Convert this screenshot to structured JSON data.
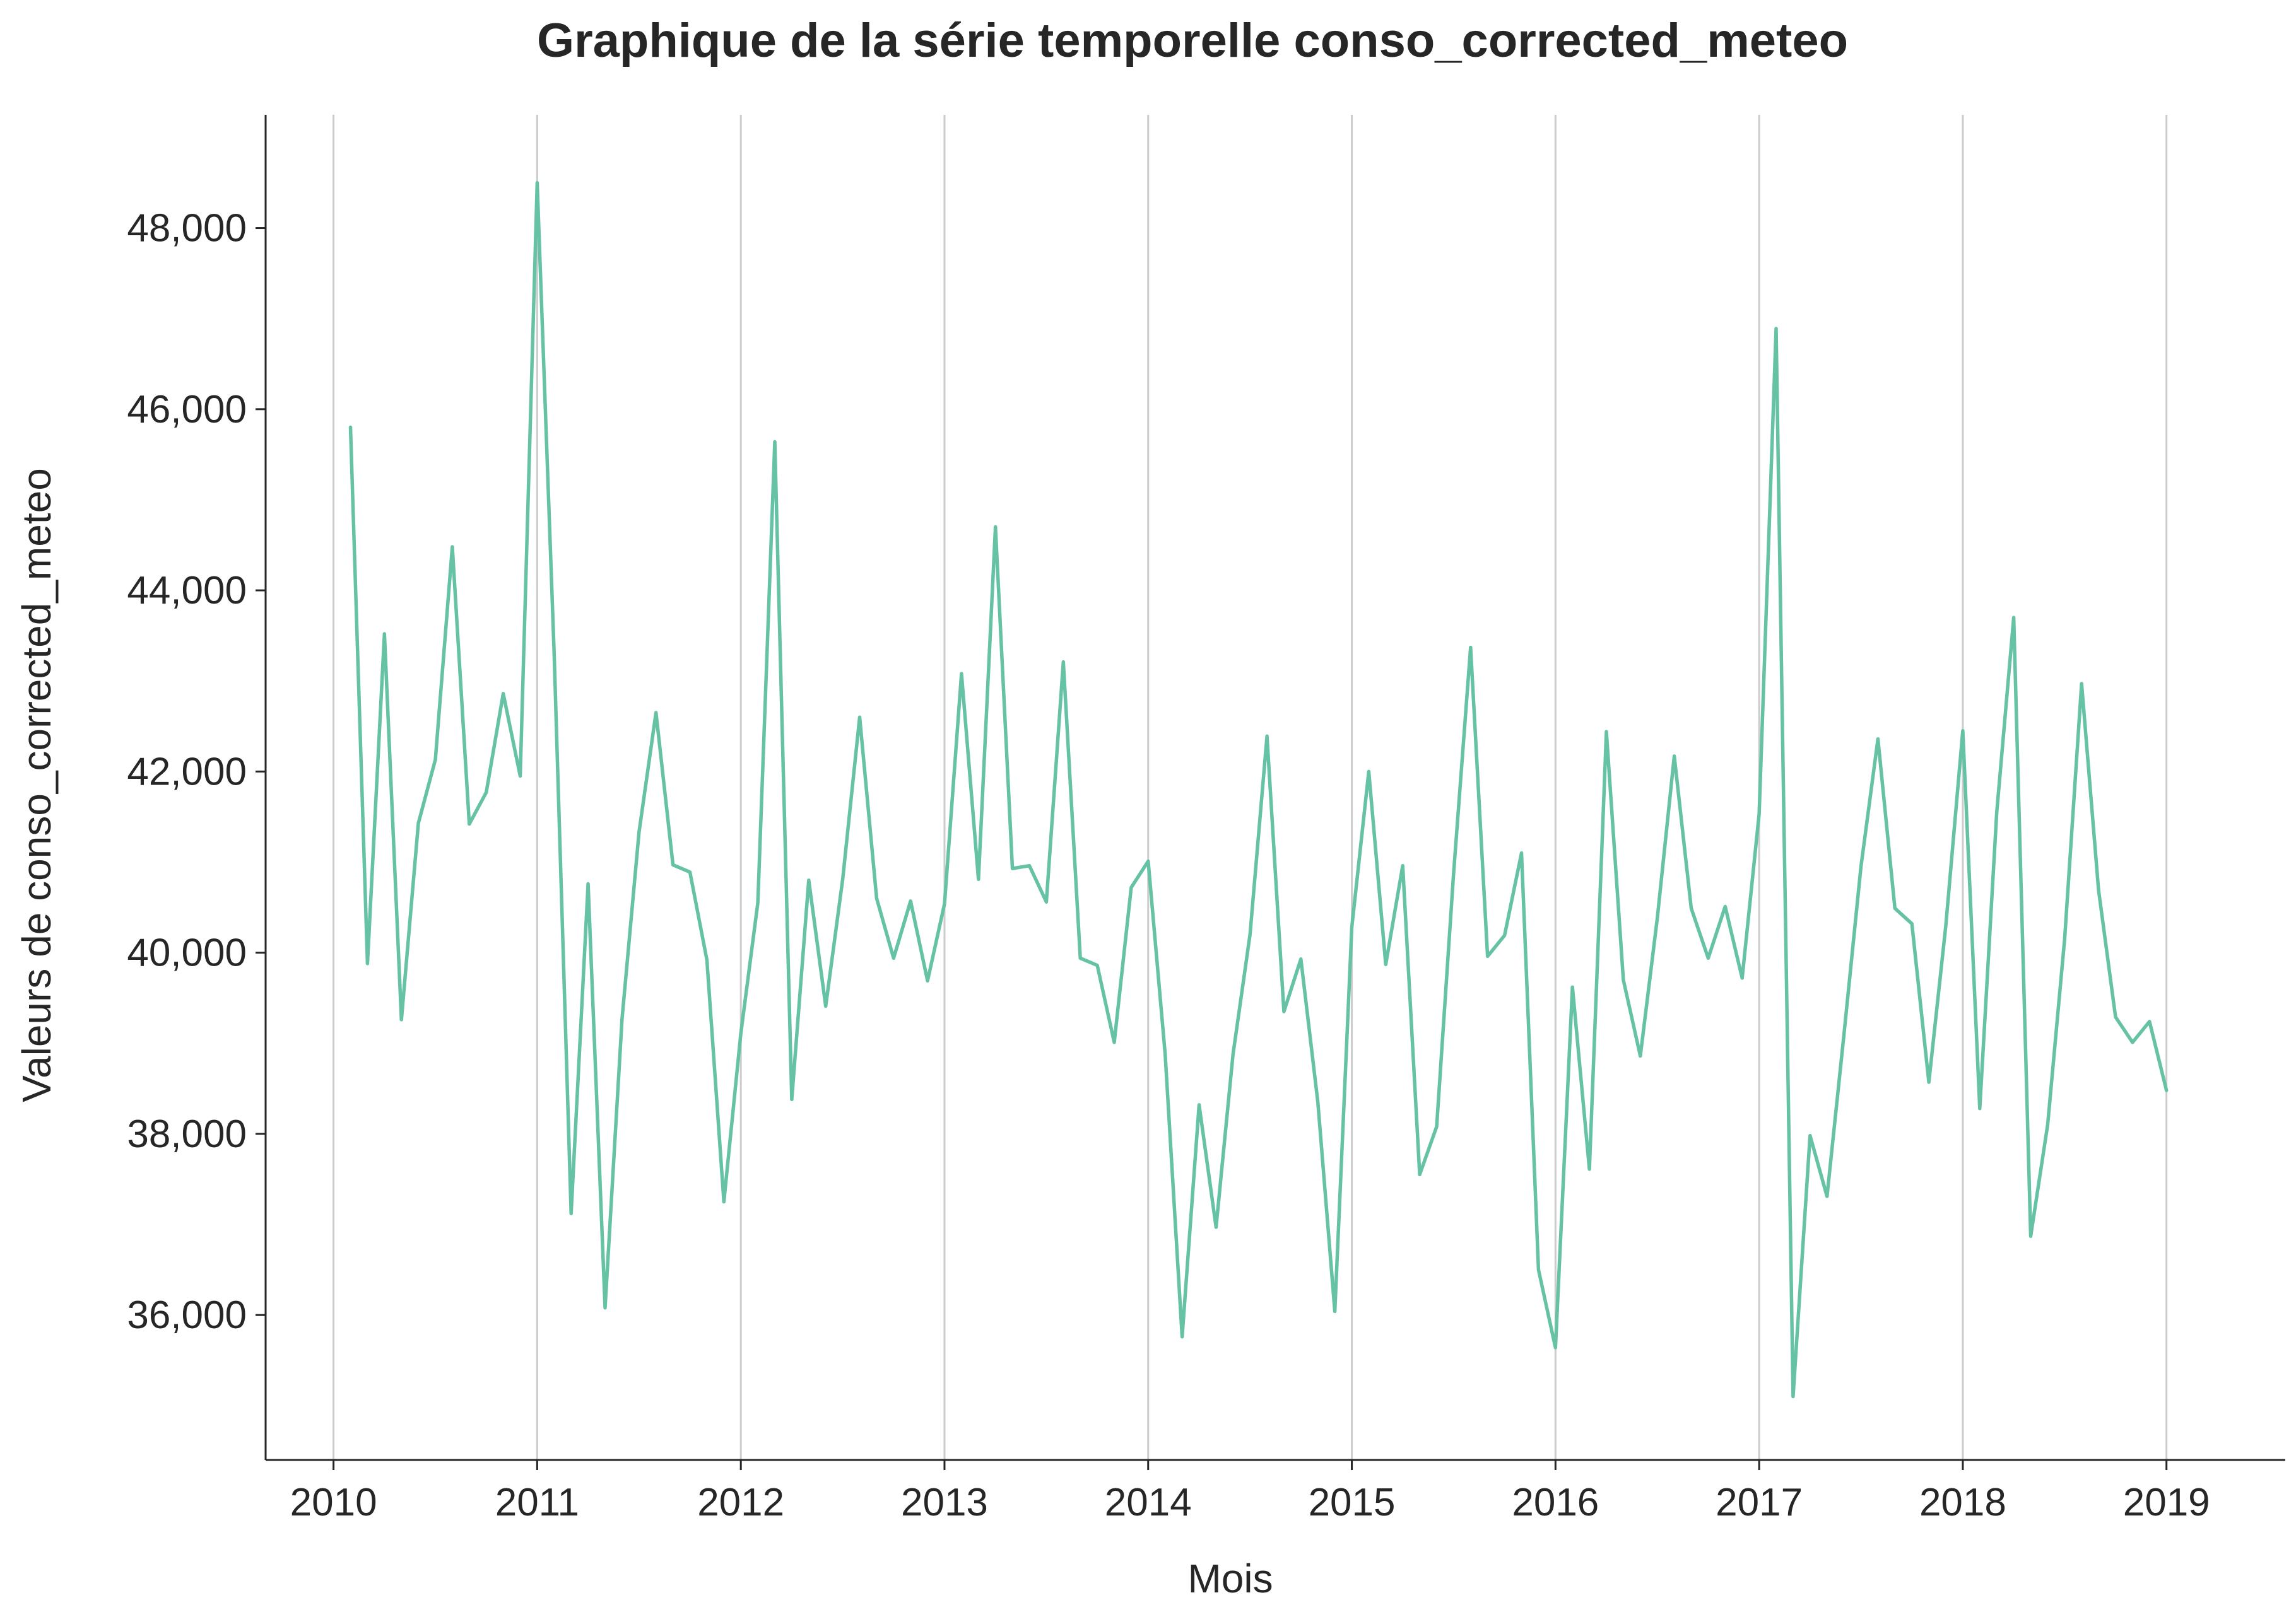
{
  "chart_data": {
    "type": "line",
    "title": "Graphique de la série temporelle conso_corrected_meteo",
    "xlabel": "Mois",
    "ylabel": "Valeurs de conso_corrected_meteo",
    "x_start": "2010-02",
    "x_ticks": [
      "2010",
      "2011",
      "2012",
      "2013",
      "2014",
      "2015",
      "2016",
      "2017",
      "2018",
      "2019"
    ],
    "y_ticks": [
      36000,
      38000,
      40000,
      42000,
      44000,
      46000,
      48000
    ],
    "y_tick_labels": [
      "36,000",
      "38,000",
      "40,000",
      "42,000",
      "44,000",
      "46,000",
      "48,000"
    ],
    "xlim": [
      "2009-09",
      "2019-08"
    ],
    "ylim": [
      34400,
      49250
    ],
    "grid": "vertical",
    "legend": "none",
    "series": [
      {
        "color": "#66c2a5",
        "x": [
          "2010-02",
          "2010-03",
          "2010-04",
          "2010-05",
          "2010-06",
          "2010-07",
          "2010-08",
          "2010-09",
          "2010-10",
          "2010-11",
          "2010-12",
          "2011-01",
          "2011-02",
          "2011-03",
          "2011-04",
          "2011-05",
          "2011-06",
          "2011-07",
          "2011-08",
          "2011-09",
          "2011-10",
          "2011-11",
          "2011-12",
          "2012-01",
          "2012-02",
          "2012-03",
          "2012-04",
          "2012-05",
          "2012-06",
          "2012-07",
          "2012-08",
          "2012-09",
          "2012-10",
          "2012-11",
          "2012-12",
          "2013-01",
          "2013-02",
          "2013-03",
          "2013-04",
          "2013-05",
          "2013-06",
          "2013-07",
          "2013-08",
          "2013-09",
          "2013-10",
          "2013-11",
          "2013-12",
          "2014-01",
          "2014-02",
          "2014-03",
          "2014-04",
          "2014-05",
          "2014-06",
          "2014-07",
          "2014-08",
          "2014-09",
          "2014-10",
          "2014-11",
          "2014-12",
          "2015-01",
          "2015-02",
          "2015-03",
          "2015-04",
          "2015-05",
          "2015-06",
          "2015-07",
          "2015-08",
          "2015-09",
          "2015-10",
          "2015-11",
          "2015-12",
          "2016-01",
          "2016-02",
          "2016-03",
          "2016-04",
          "2016-05",
          "2016-06",
          "2016-07",
          "2016-08",
          "2016-09",
          "2016-10",
          "2016-11",
          "2016-12",
          "2017-01",
          "2017-02",
          "2017-03",
          "2017-04",
          "2017-05",
          "2017-06",
          "2017-07",
          "2017-08",
          "2017-09",
          "2017-10",
          "2017-11",
          "2017-12",
          "2018-01",
          "2018-02",
          "2018-03",
          "2018-04",
          "2018-05",
          "2018-06",
          "2018-07",
          "2018-08",
          "2018-09",
          "2018-10",
          "2018-11",
          "2018-12",
          "2019-01"
        ],
        "values": [
          45800,
          39880,
          43520,
          39260,
          41430,
          42130,
          44480,
          41420,
          41770,
          42860,
          41950,
          48500,
          43300,
          37120,
          40760,
          36080,
          39270,
          41330,
          42650,
          40970,
          40890,
          39920,
          37250,
          39110,
          40550,
          45640,
          38380,
          40800,
          39410,
          40810,
          42600,
          40600,
          39940,
          40570,
          39690,
          40540,
          43080,
          40810,
          44700,
          40930,
          40960,
          40560,
          43210,
          39940,
          39860,
          39010,
          40720,
          41010,
          38880,
          35760,
          38320,
          36970,
          38880,
          40200,
          42390,
          39350,
          39930,
          38350,
          36040,
          40280,
          42000,
          39870,
          40960,
          37550,
          38080,
          40880,
          43370,
          39960,
          40190,
          41100,
          36500,
          35640,
          39620,
          37610,
          42440,
          39700,
          38860,
          40380,
          42170,
          40490,
          39940,
          40510,
          39720,
          41530,
          46890,
          35100,
          37980,
          37310,
          39100,
          40950,
          42360,
          40490,
          40320,
          38570,
          40300,
          42450,
          38280,
          41550,
          43700,
          36870,
          38100,
          40150,
          42970,
          40690,
          39290,
          39010,
          39240,
          38480
        ]
      }
    ]
  }
}
